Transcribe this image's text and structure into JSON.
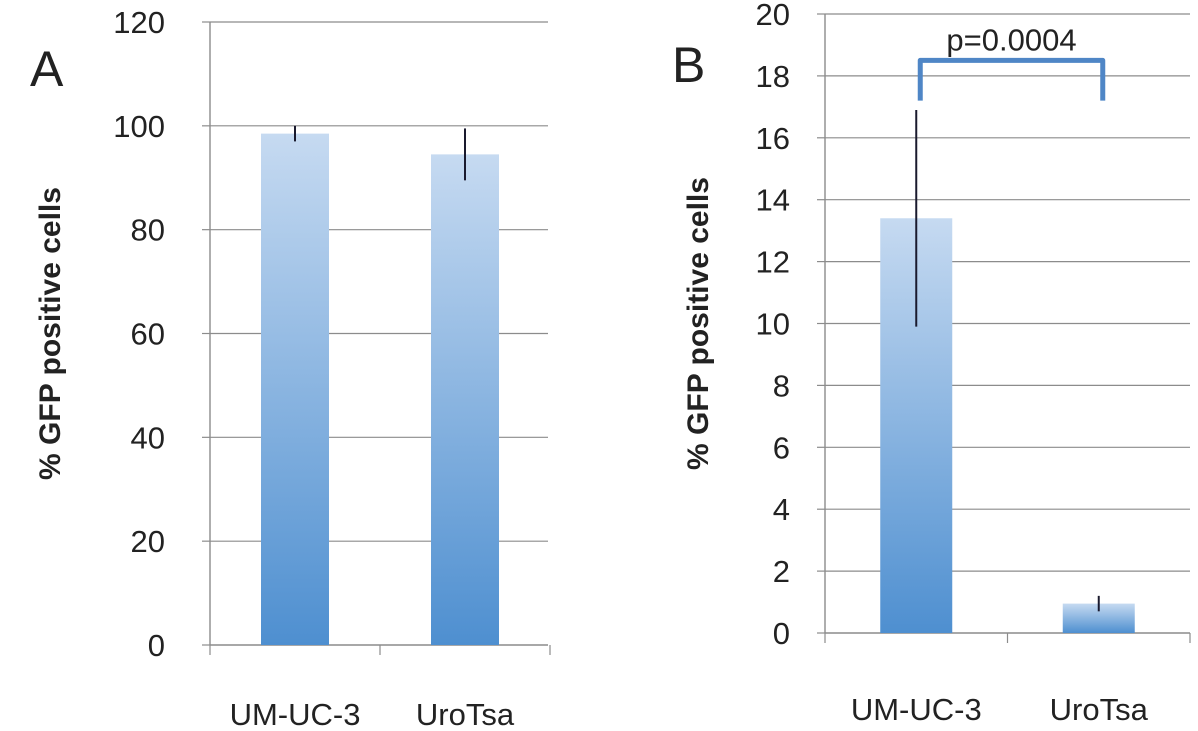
{
  "chart_data": [
    {
      "type": "bar",
      "panel_label": "A",
      "categories": [
        "UM-UC-3",
        "UroTsa"
      ],
      "values": [
        98.5,
        94.5
      ],
      "error": [
        1.5,
        5.0
      ],
      "ylabel": "% GFP positive cells",
      "xlabel": "",
      "ylim": [
        0,
        120
      ],
      "yticks": [
        0,
        20,
        40,
        60,
        80,
        100,
        120
      ],
      "grid": true,
      "bar_color": "#5b9bd5"
    },
    {
      "type": "bar",
      "panel_label": "B",
      "categories": [
        "UM-UC-3",
        "UroTsa"
      ],
      "values": [
        13.4,
        0.95
      ],
      "error": [
        3.5,
        0.25
      ],
      "ylabel": "% GFP positive cells",
      "xlabel": "",
      "ylim": [
        0,
        20
      ],
      "yticks": [
        0,
        2,
        4,
        6,
        8,
        10,
        12,
        14,
        16,
        18,
        20
      ],
      "grid": true,
      "bar_color": "#5b9bd5",
      "annotation": {
        "text": "p=0.0004",
        "bracket_value": 18.5,
        "bracket_color": "#4f86c6"
      }
    }
  ]
}
